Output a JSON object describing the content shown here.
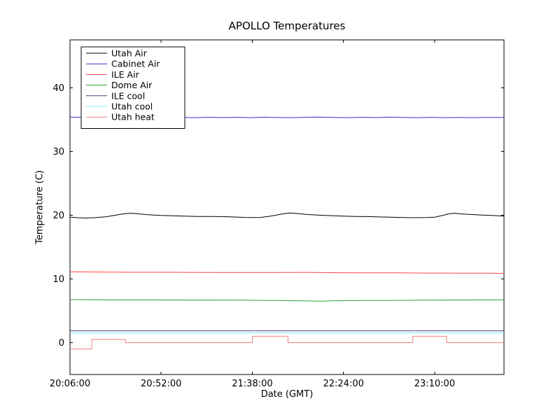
{
  "figure": {
    "background": "#ffffff",
    "axes_edge_color": "#000000"
  },
  "chart_data": {
    "type": "line",
    "title": "APOLLO Temperatures",
    "xlabel": "Date (GMT)",
    "ylabel": "Temperature (C)",
    "x_unit": "minutes since 20:06:00 GMT",
    "xlim": [
      0,
      219
    ],
    "ylim": [
      -5,
      47.5
    ],
    "x_ticks": [
      0,
      46,
      92,
      138,
      184
    ],
    "x_tick_labels": [
      "20:06:00",
      "20:52:00",
      "21:38:00",
      "22:24:00",
      "23:10:00"
    ],
    "y_ticks": [
      0,
      10,
      20,
      30,
      40
    ],
    "y_tick_labels": [
      "0",
      "10",
      "20",
      "30",
      "40"
    ],
    "grid": false,
    "legend_position": "upper left",
    "series": [
      {
        "name": "Utah Air",
        "color": "#000000",
        "points": [
          [
            0,
            19.7
          ],
          [
            4,
            19.6
          ],
          [
            8,
            19.55
          ],
          [
            12,
            19.6
          ],
          [
            18,
            19.75
          ],
          [
            24,
            20.05
          ],
          [
            28,
            20.25
          ],
          [
            31,
            20.3
          ],
          [
            35,
            20.2
          ],
          [
            40,
            20.05
          ],
          [
            46,
            19.95
          ],
          [
            52,
            19.9
          ],
          [
            58,
            19.85
          ],
          [
            64,
            19.8
          ],
          [
            70,
            19.8
          ],
          [
            76,
            19.78
          ],
          [
            82,
            19.72
          ],
          [
            88,
            19.65
          ],
          [
            92,
            19.62
          ],
          [
            96,
            19.65
          ],
          [
            100,
            19.8
          ],
          [
            104,
            20.0
          ],
          [
            108,
            20.25
          ],
          [
            111,
            20.35
          ],
          [
            115,
            20.25
          ],
          [
            120,
            20.1
          ],
          [
            126,
            20.0
          ],
          [
            132,
            19.92
          ],
          [
            138,
            19.85
          ],
          [
            144,
            19.8
          ],
          [
            150,
            19.78
          ],
          [
            156,
            19.72
          ],
          [
            162,
            19.68
          ],
          [
            168,
            19.62
          ],
          [
            174,
            19.6
          ],
          [
            180,
            19.62
          ],
          [
            184,
            19.68
          ],
          [
            188,
            19.95
          ],
          [
            191,
            20.2
          ],
          [
            194,
            20.3
          ],
          [
            198,
            20.18
          ],
          [
            203,
            20.1
          ],
          [
            208,
            20.02
          ],
          [
            213,
            19.95
          ],
          [
            219,
            19.85
          ]
        ]
      },
      {
        "name": "Cabinet Air",
        "color": "#3333cc",
        "points": [
          [
            0,
            35.4
          ],
          [
            7,
            35.35
          ],
          [
            14,
            35.3
          ],
          [
            21,
            35.38
          ],
          [
            28,
            35.32
          ],
          [
            35,
            35.36
          ],
          [
            42,
            35.3
          ],
          [
            49,
            35.38
          ],
          [
            56,
            35.33
          ],
          [
            63,
            35.3
          ],
          [
            70,
            35.36
          ],
          [
            77,
            35.31
          ],
          [
            84,
            35.35
          ],
          [
            91,
            35.3
          ],
          [
            98,
            35.37
          ],
          [
            105,
            35.32
          ],
          [
            112,
            35.3
          ],
          [
            119,
            35.36
          ],
          [
            126,
            35.4
          ],
          [
            133,
            35.33
          ],
          [
            140,
            35.3
          ],
          [
            147,
            35.36
          ],
          [
            154,
            35.31
          ],
          [
            161,
            35.38
          ],
          [
            168,
            35.33
          ],
          [
            175,
            35.3
          ],
          [
            182,
            35.35
          ],
          [
            189,
            35.3
          ],
          [
            196,
            35.34
          ],
          [
            203,
            35.3
          ],
          [
            210,
            35.33
          ],
          [
            219,
            35.32
          ]
        ]
      },
      {
        "name": "ILE Air",
        "color": "#ff4444",
        "points": [
          [
            0,
            11.1
          ],
          [
            15,
            11.08
          ],
          [
            30,
            11.05
          ],
          [
            45,
            11.05
          ],
          [
            60,
            11.02
          ],
          [
            75,
            11.0
          ],
          [
            90,
            11.0
          ],
          [
            105,
            11.0
          ],
          [
            120,
            11.03
          ],
          [
            135,
            10.97
          ],
          [
            150,
            10.95
          ],
          [
            165,
            10.95
          ],
          [
            180,
            10.92
          ],
          [
            195,
            10.9
          ],
          [
            210,
            10.9
          ],
          [
            219,
            10.87
          ]
        ]
      },
      {
        "name": "Dome Air",
        "color": "#2f9e2f",
        "points": [
          [
            0,
            6.75
          ],
          [
            15,
            6.72
          ],
          [
            30,
            6.7
          ],
          [
            45,
            6.7
          ],
          [
            60,
            6.68
          ],
          [
            75,
            6.66
          ],
          [
            90,
            6.65
          ],
          [
            105,
            6.6
          ],
          [
            118,
            6.55
          ],
          [
            126,
            6.5
          ],
          [
            134,
            6.58
          ],
          [
            145,
            6.6
          ],
          [
            160,
            6.62
          ],
          [
            175,
            6.65
          ],
          [
            190,
            6.68
          ],
          [
            205,
            6.7
          ],
          [
            219,
            6.7
          ]
        ]
      },
      {
        "name": "ILE cool",
        "color": "#483d8b",
        "points": [
          [
            0,
            1.85
          ],
          [
            219,
            1.85
          ]
        ]
      },
      {
        "name": "Utah cool",
        "color": "#7fe8ee",
        "points": [
          [
            0,
            1.5
          ],
          [
            219,
            1.5
          ]
        ]
      },
      {
        "name": "Utah heat",
        "color": "#f08080",
        "points": [
          [
            0,
            -1
          ],
          [
            11,
            -1
          ],
          [
            11,
            0.5
          ],
          [
            28,
            0.5
          ],
          [
            28,
            0
          ],
          [
            92,
            0
          ],
          [
            92,
            1
          ],
          [
            110,
            1
          ],
          [
            110,
            0
          ],
          [
            173,
            0
          ],
          [
            173,
            1
          ],
          [
            190,
            1
          ],
          [
            190,
            0
          ],
          [
            219,
            0
          ]
        ]
      }
    ]
  }
}
